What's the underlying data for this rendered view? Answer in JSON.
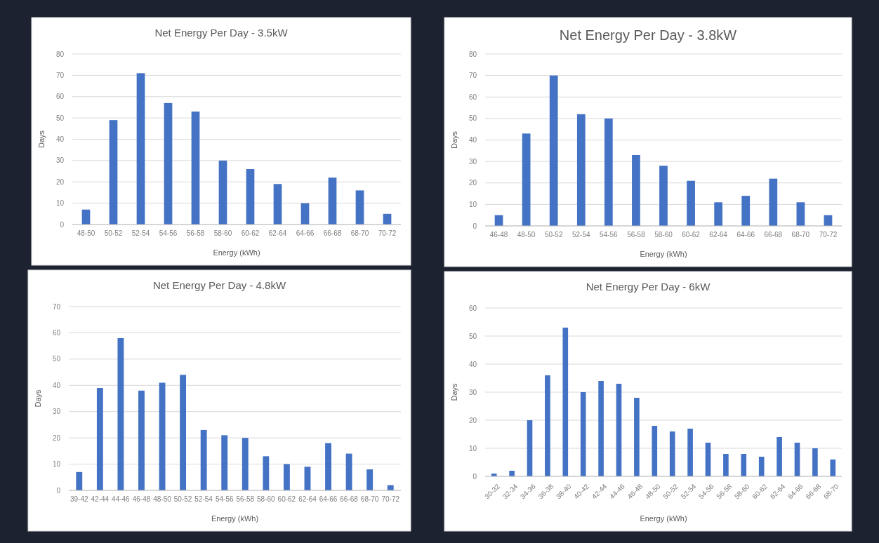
{
  "chart_data": [
    {
      "type": "bar",
      "title": "Net Energy Per Day - 3.5kW",
      "xlabel": "Energy (kWh)",
      "ylabel": "Days",
      "categories": [
        "48-50",
        "50-52",
        "52-54",
        "54-56",
        "56-58",
        "58-60",
        "60-62",
        "62-64",
        "64-66",
        "66-68",
        "68-70",
        "70-72"
      ],
      "values": [
        7,
        49,
        71,
        57,
        53,
        30,
        26,
        19,
        10,
        22,
        16,
        5
      ],
      "color": "#4472c4",
      "ylim": [
        0,
        80
      ],
      "yticks": [
        0,
        10,
        20,
        30,
        40,
        50,
        60,
        70,
        80
      ],
      "grid": "y"
    },
    {
      "type": "bar",
      "title": "Net Energy Per Day - 3.8kW",
      "xlabel": "Energy (kWh)",
      "ylabel": "Days",
      "categories": [
        "46-48",
        "48-50",
        "50-52",
        "52-54",
        "54-56",
        "56-58",
        "58-60",
        "60-62",
        "62-64",
        "64-66",
        "66-68",
        "68-70",
        "70-72"
      ],
      "values": [
        5,
        43,
        70,
        52,
        50,
        33,
        28,
        21,
        11,
        14,
        22,
        11,
        5
      ],
      "color": "#4472c4",
      "ylim": [
        0,
        80
      ],
      "yticks": [
        0,
        10,
        20,
        30,
        40,
        50,
        60,
        70,
        80
      ],
      "grid": "y"
    },
    {
      "type": "bar",
      "title": "Net Energy Per Day - 4.8kW",
      "xlabel": "Energy (kWh)",
      "ylabel": "Days",
      "categories": [
        "39-42",
        "42-44",
        "44-46",
        "46-48",
        "48-50",
        "50-52",
        "52-54",
        "54-56",
        "56-58",
        "58-60",
        "60-62",
        "62-64",
        "64-66",
        "66-68",
        "68-70",
        "70-72"
      ],
      "values": [
        7,
        39,
        58,
        38,
        41,
        44,
        23,
        21,
        20,
        13,
        10,
        9,
        18,
        14,
        8,
        2
      ],
      "color": "#4472c4",
      "ylim": [
        0,
        70
      ],
      "yticks": [
        0,
        10,
        20,
        30,
        40,
        50,
        60,
        70
      ],
      "grid": "y"
    },
    {
      "type": "bar",
      "title": "Net Energy Per Day - 6kW",
      "xlabel": "Energy (kWh)",
      "ylabel": "Days",
      "categories": [
        "30-32",
        "32-34",
        "34-36",
        "36-38",
        "38-40",
        "40-42",
        "42-44",
        "44-46",
        "46-48",
        "48-50",
        "50-52",
        "52-54",
        "54-56",
        "56-58",
        "58-60",
        "60-62",
        "62-64",
        "64-66",
        "66-68",
        "68-70"
      ],
      "values": [
        1,
        2,
        20,
        36,
        53,
        30,
        34,
        33,
        28,
        18,
        16,
        17,
        12,
        8,
        8,
        7,
        14,
        12,
        10,
        6
      ],
      "color": "#4472c4",
      "ylim": [
        0,
        60
      ],
      "yticks": [
        0,
        10,
        20,
        30,
        40,
        50,
        60
      ],
      "grid": "y"
    }
  ]
}
